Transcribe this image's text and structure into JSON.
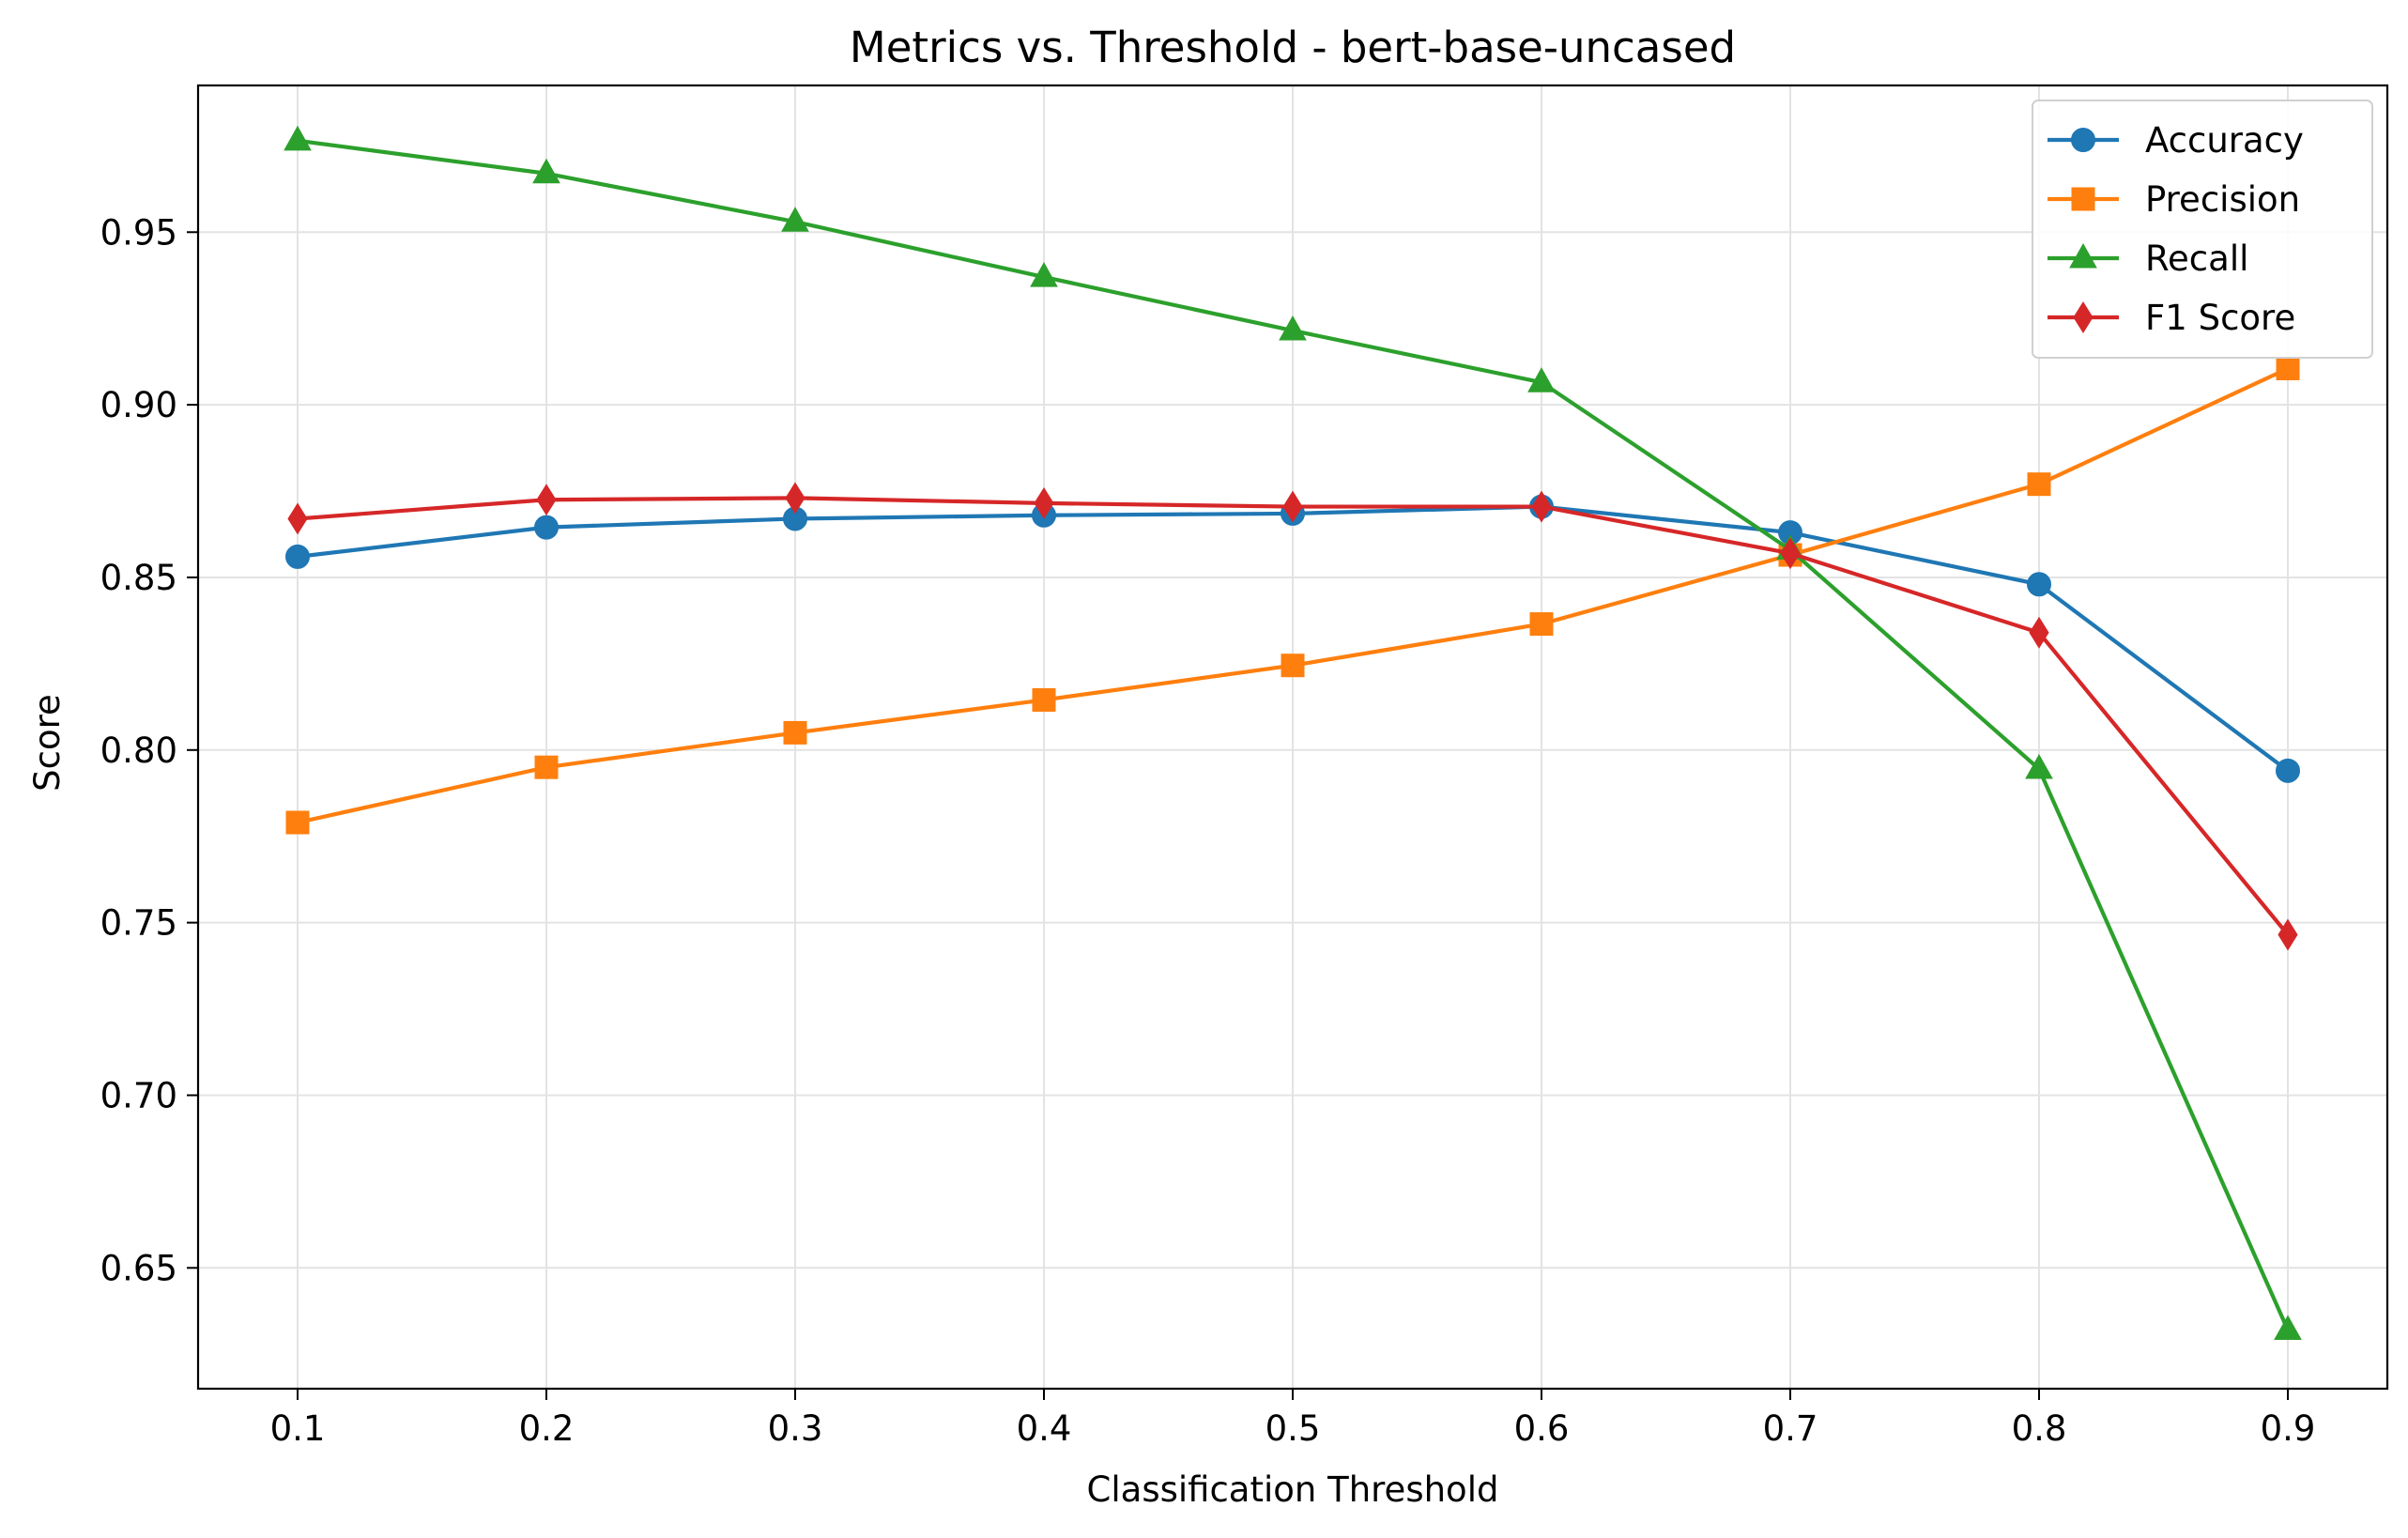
{
  "chart_data": {
    "type": "line",
    "title": "Metrics vs. Threshold - bert-base-uncased",
    "xlabel": "Classification Threshold",
    "ylabel": "Score",
    "x": [
      0.1,
      0.2,
      0.3,
      0.4,
      0.5,
      0.6,
      0.7,
      0.8,
      0.9
    ],
    "x_tick_labels": [
      "0.1",
      "0.2",
      "0.3",
      "0.4",
      "0.5",
      "0.6",
      "0.7",
      "0.8",
      "0.9"
    ],
    "y_ticks": [
      0.65,
      0.7,
      0.75,
      0.8,
      0.85,
      0.9,
      0.95
    ],
    "y_tick_labels": [
      "0.65",
      "0.70",
      "0.75",
      "0.80",
      "0.85",
      "0.90",
      "0.95"
    ],
    "xlim": [
      0.06,
      0.94
    ],
    "ylim": [
      0.615,
      0.9925
    ],
    "grid": true,
    "legend_position": "top-right",
    "series": [
      {
        "name": "Accuracy",
        "color": "#1f77b4",
        "marker": "circle",
        "values": [
          0.856,
          0.8645,
          0.867,
          0.868,
          0.8685,
          0.8705,
          0.863,
          0.848,
          0.794
        ]
      },
      {
        "name": "Precision",
        "color": "#ff7f0e",
        "marker": "square",
        "values": [
          0.779,
          0.795,
          0.805,
          0.8145,
          0.8245,
          0.8365,
          0.8565,
          0.877,
          0.9105
        ]
      },
      {
        "name": "Recall",
        "color": "#2ca02c",
        "marker": "triangle",
        "values": [
          0.9765,
          0.967,
          0.953,
          0.937,
          0.9215,
          0.9065,
          0.858,
          0.7945,
          0.632
        ]
      },
      {
        "name": "F1 Score",
        "color": "#d62728",
        "marker": "diamond",
        "values": [
          0.867,
          0.8725,
          0.873,
          0.8715,
          0.8705,
          0.8705,
          0.857,
          0.834,
          0.7465
        ]
      }
    ]
  }
}
